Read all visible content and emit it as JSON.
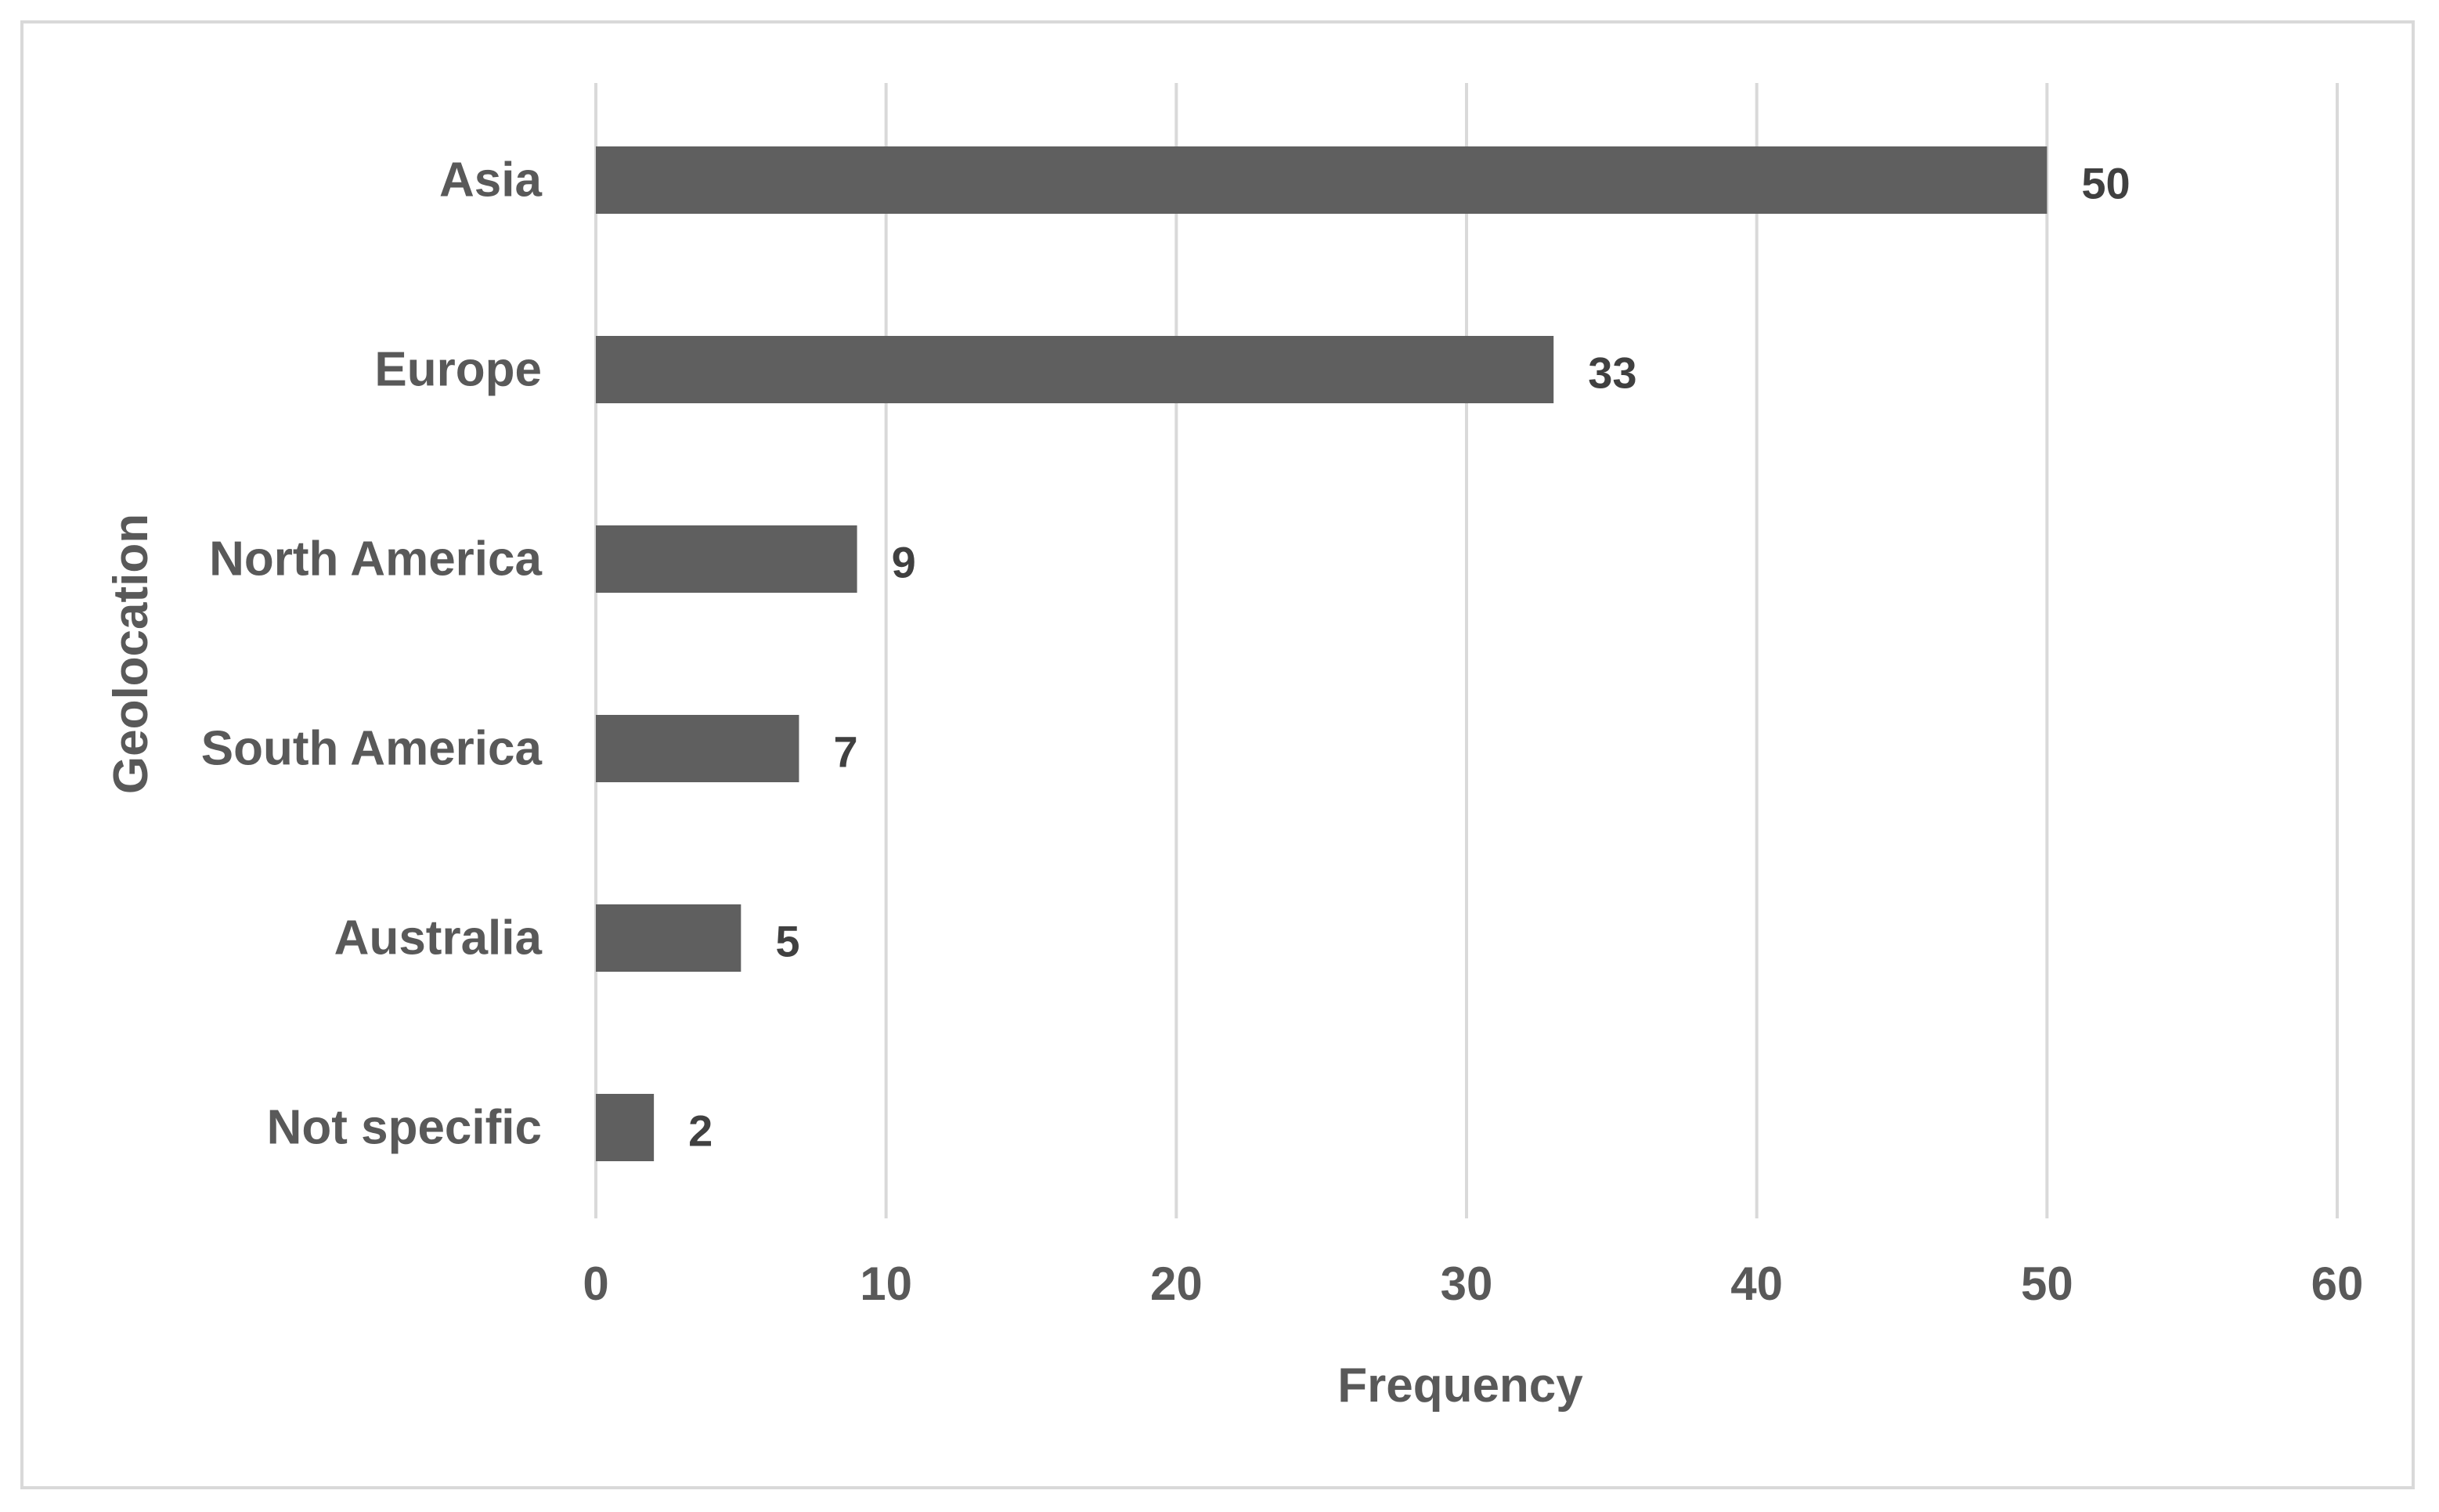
{
  "chart_data": {
    "type": "bar",
    "orientation": "horizontal",
    "categories": [
      "Asia",
      "Europe",
      "North America",
      "South America",
      "Australia",
      "Not specific"
    ],
    "values": [
      50,
      33,
      9,
      7,
      5,
      2
    ],
    "data_labels": [
      "50",
      "33",
      "9",
      "7",
      "5",
      "2"
    ],
    "title": "",
    "xlabel": "Frequency",
    "ylabel": "Geolocation",
    "xlim": [
      0,
      60
    ],
    "x_ticks": [
      0,
      10,
      20,
      30,
      40,
      50,
      60
    ],
    "grid": true,
    "legend": "none",
    "colors": {
      "bar": "#5f5f5f",
      "grid": "#d9d9d9",
      "text": "#595959",
      "data_label": "#404040",
      "frame": "#d9d9d9"
    }
  }
}
